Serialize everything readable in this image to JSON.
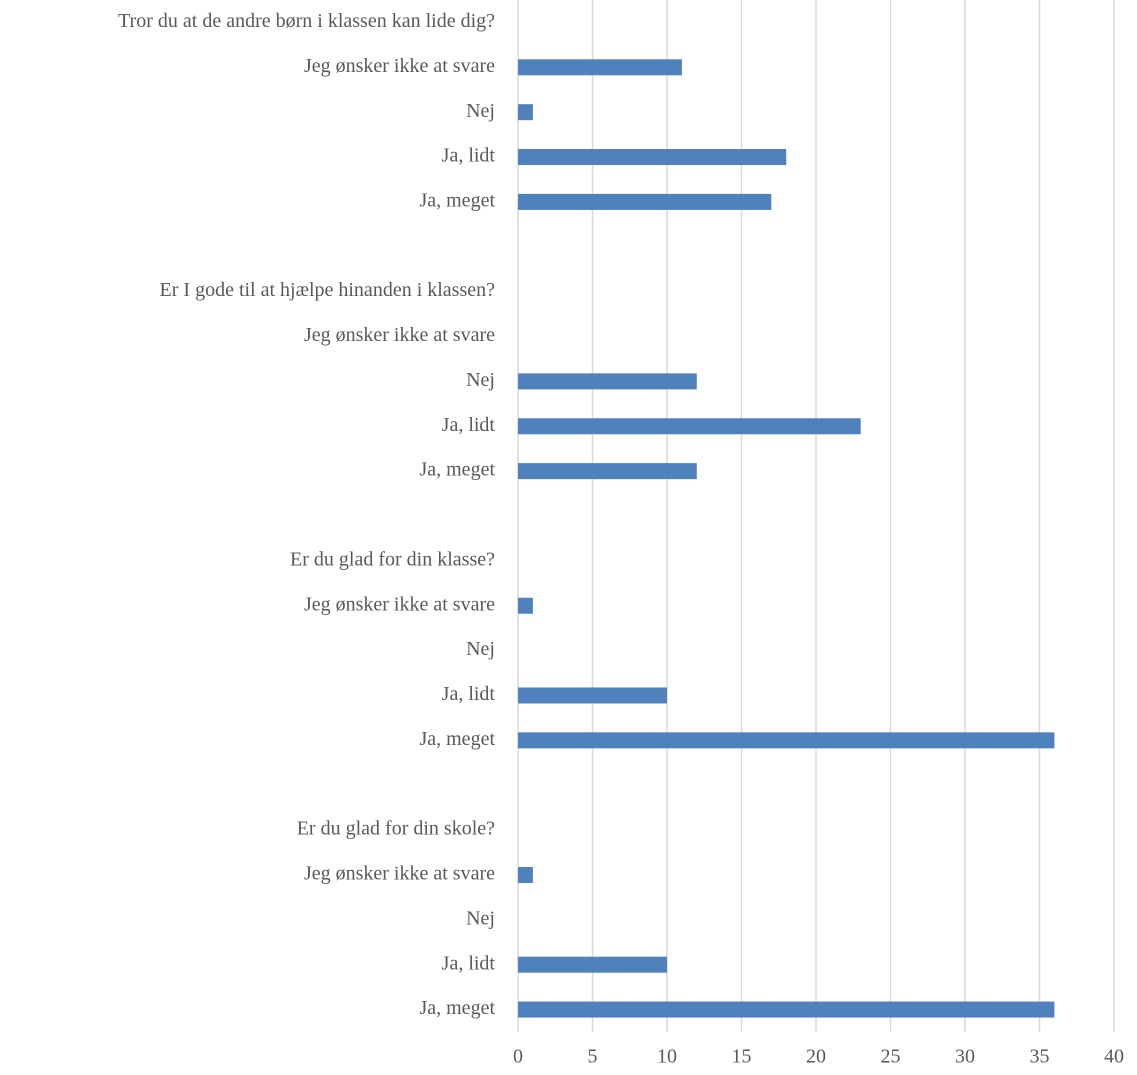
{
  "chart_data": {
    "type": "bar",
    "orientation": "horizontal",
    "categories": [
      "Tror du at de andre børn i klassen kan lide dig?",
      "Jeg ønsker ikke at svare",
      "Nej",
      "Ja, lidt",
      "Ja, meget",
      null,
      "Er I gode til at hjælpe hinanden i klassen?",
      "Jeg ønsker ikke at svare",
      "Nej",
      "Ja, lidt",
      "Ja, meget",
      null,
      "Er du glad for din klasse?",
      "Jeg ønsker ikke at svare",
      "Nej",
      "Ja, lidt",
      "Ja, meget",
      null,
      "Er du glad for din skole?",
      "Jeg ønsker ikke at svare",
      "Nej",
      "Ja, lidt",
      "Ja, meget"
    ],
    "values": [
      null,
      11,
      1,
      18,
      17,
      null,
      null,
      0,
      12,
      23,
      12,
      null,
      null,
      1,
      0,
      10,
      36,
      null,
      null,
      1,
      0,
      10,
      36
    ],
    "color": "#4f81bd",
    "xlim": [
      0,
      40
    ],
    "xticks": [
      0,
      5,
      10,
      15,
      20,
      25,
      30,
      35,
      40
    ],
    "grid": true
  }
}
